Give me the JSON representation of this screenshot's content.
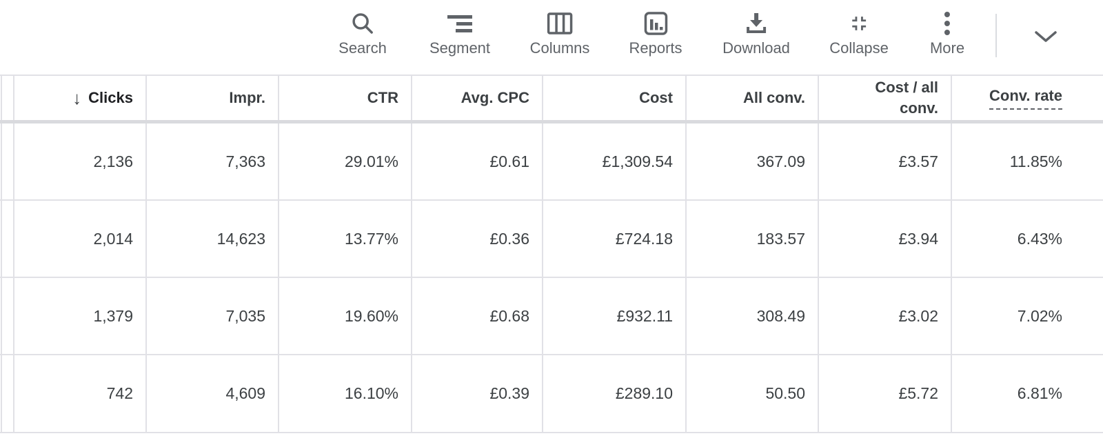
{
  "toolbar": {
    "buttons": [
      {
        "name": "search",
        "icon": "search-icon",
        "label": "Search"
      },
      {
        "name": "segment",
        "icon": "segment-icon",
        "label": "Segment"
      },
      {
        "name": "columns",
        "icon": "columns-icon",
        "label": "Columns"
      },
      {
        "name": "reports",
        "icon": "reports-icon",
        "label": "Reports"
      },
      {
        "name": "download",
        "icon": "download-icon",
        "label": "Download"
      },
      {
        "name": "collapse",
        "icon": "collapse-icon",
        "label": "Collapse"
      },
      {
        "name": "more",
        "icon": "more-icon",
        "label": "More"
      }
    ],
    "expand_chevron": {
      "name": "expand",
      "icon": "chevron-down-icon"
    }
  },
  "table": {
    "columns": [
      {
        "name": "clicks",
        "label": "Clicks",
        "sorted": true,
        "sort_indicator": "↓"
      },
      {
        "name": "impr",
        "label": "Impr."
      },
      {
        "name": "ctr",
        "label": "CTR"
      },
      {
        "name": "avg-cpc",
        "label": "Avg. CPC"
      },
      {
        "name": "cost",
        "label": "Cost"
      },
      {
        "name": "all-conv",
        "label": "All conv."
      },
      {
        "name": "cost-all-conv",
        "label": "Cost / all conv.",
        "wrap": true
      },
      {
        "name": "conv-rate",
        "label": "Conv. rate",
        "dashed_underline": true
      }
    ],
    "rows": [
      [
        "2,136",
        "7,363",
        "29.01%",
        "£0.61",
        "£1,309.54",
        "367.09",
        "£3.57",
        "11.85%"
      ],
      [
        "2,014",
        "14,623",
        "13.77%",
        "£0.36",
        "£724.18",
        "183.57",
        "£3.94",
        "6.43%"
      ],
      [
        "1,379",
        "7,035",
        "19.60%",
        "£0.68",
        "£932.11",
        "308.49",
        "£3.02",
        "7.02%"
      ],
      [
        "742",
        "4,609",
        "16.10%",
        "£0.39",
        "£289.10",
        "50.50",
        "£5.72",
        "6.81%"
      ]
    ]
  },
  "colors": {
    "text": "#3c4043",
    "text_dark": "#202124",
    "muted_icon_text": "#5f6368",
    "grid_line": "#e1e1e6",
    "header_band": "#d9dade"
  }
}
